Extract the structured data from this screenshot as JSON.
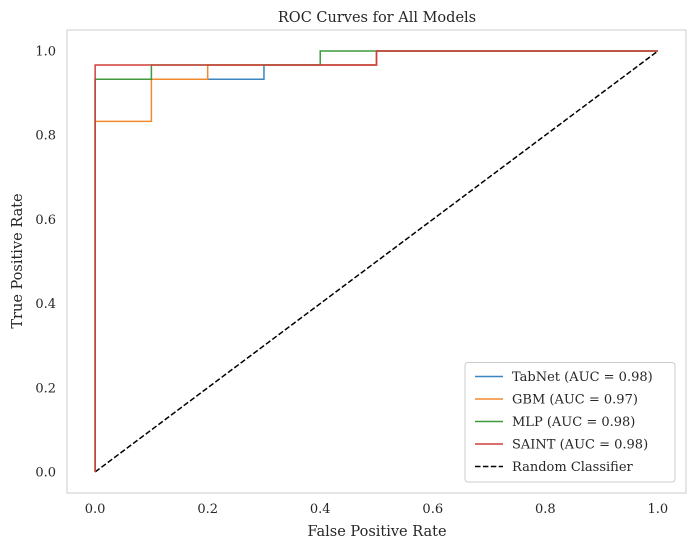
{
  "chart_data": {
    "type": "line",
    "title": "ROC Curves for All Models",
    "xlabel": "False Positive Rate",
    "ylabel": "True Positive Rate",
    "xlim": [
      -0.05,
      1.05
    ],
    "ylim": [
      -0.05,
      1.05
    ],
    "grid": false,
    "xticks": [
      0.0,
      0.2,
      0.4,
      0.6,
      0.8,
      1.0
    ],
    "yticks": [
      0.0,
      0.2,
      0.4,
      0.6,
      0.8,
      1.0
    ],
    "xtick_labels": [
      "0.0",
      "0.2",
      "0.4",
      "0.6",
      "0.8",
      "1.0"
    ],
    "ytick_labels": [
      "0.0",
      "0.2",
      "0.4",
      "0.6",
      "0.8",
      "1.0"
    ],
    "legend_position": "bottom-right",
    "series": [
      {
        "name": "TabNet (AUC = 0.98)",
        "color": "#3b86c0",
        "style": "solid",
        "x": [
          0.0,
          0.0,
          0.0,
          0.3,
          0.3,
          0.5,
          0.5,
          1.0
        ],
        "y": [
          0.0,
          0.933,
          0.933,
          0.933,
          0.967,
          0.967,
          1.0,
          1.0
        ]
      },
      {
        "name": "GBM (AUC = 0.97)",
        "color": "#f08a2f",
        "style": "solid",
        "x": [
          0.0,
          0.0,
          0.1,
          0.1,
          0.2,
          0.2,
          0.5,
          0.5,
          1.0
        ],
        "y": [
          0.0,
          0.833,
          0.833,
          0.933,
          0.933,
          0.967,
          0.967,
          1.0,
          1.0
        ]
      },
      {
        "name": "MLP (AUC = 0.98)",
        "color": "#3e9a3a",
        "style": "solid",
        "x": [
          0.0,
          0.0,
          0.1,
          0.1,
          0.4,
          0.4,
          1.0
        ],
        "y": [
          0.0,
          0.933,
          0.933,
          0.967,
          0.967,
          1.0,
          1.0
        ]
      },
      {
        "name": "SAINT (AUC = 0.98)",
        "color": "#d13f3c",
        "style": "solid",
        "x": [
          0.0,
          0.0,
          0.5,
          0.5,
          1.0
        ],
        "y": [
          0.0,
          0.967,
          0.967,
          1.0,
          1.0
        ]
      },
      {
        "name": "Random Classifier",
        "color": "#000000",
        "style": "dashed",
        "x": [
          0.0,
          1.0
        ],
        "y": [
          0.0,
          1.0
        ]
      }
    ]
  }
}
